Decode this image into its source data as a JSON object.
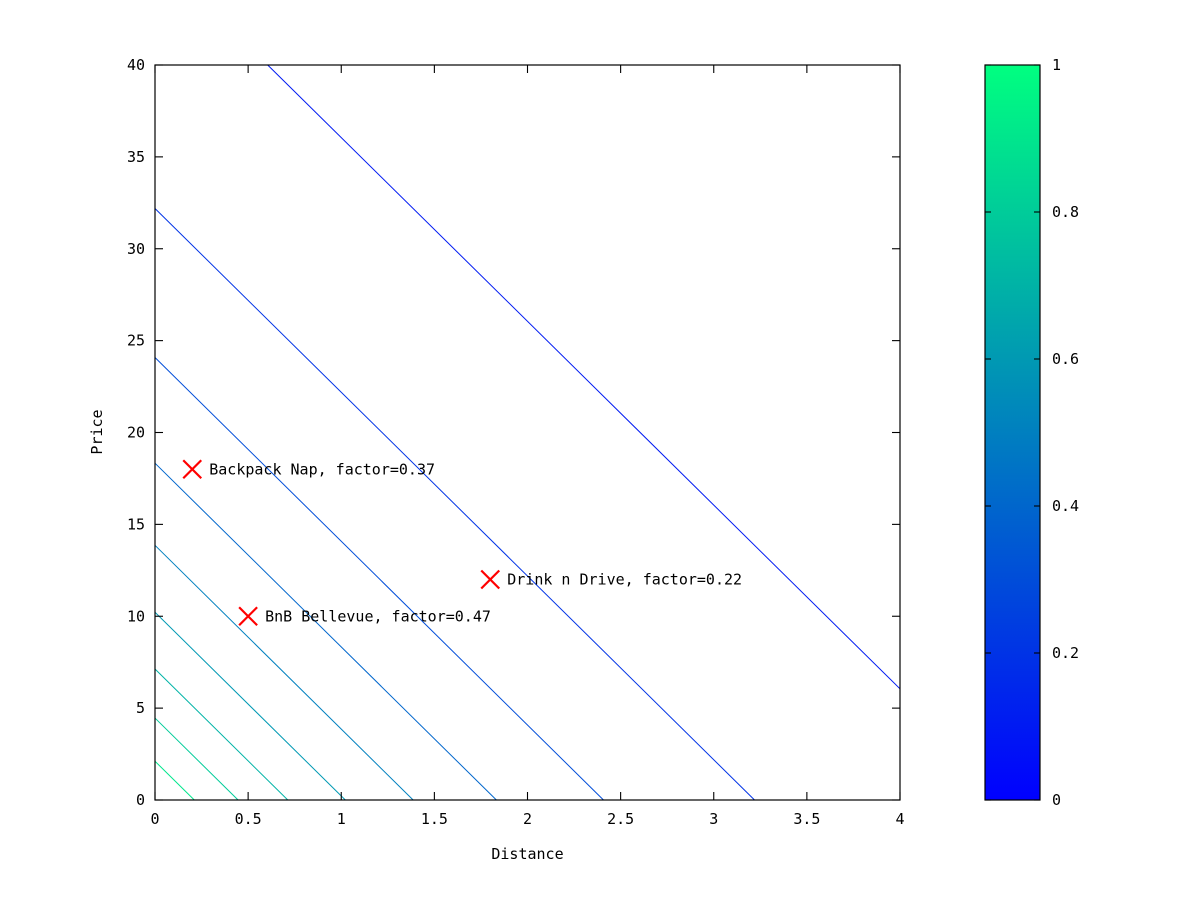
{
  "figure": {
    "background": "#ffffff",
    "axes_color": "#000000",
    "text_color": "#000000"
  },
  "chart_data": {
    "type": "contour",
    "title": "",
    "xlabel": "Distance",
    "ylabel": "Price",
    "xlim": [
      0,
      4
    ],
    "ylim": [
      0,
      40
    ],
    "grid": false,
    "xticks": {
      "values": [
        0,
        0.5,
        1,
        1.5,
        2,
        2.5,
        3,
        3.5,
        4
      ],
      "labels": [
        "0",
        "0.5",
        "1",
        "1.5",
        "2",
        "2.5",
        "3",
        "3.5",
        "4"
      ]
    },
    "yticks": {
      "values": [
        0,
        5,
        10,
        15,
        20,
        25,
        30,
        35,
        40
      ],
      "labels": [
        "0",
        "5",
        "10",
        "15",
        "20",
        "25",
        "30",
        "35",
        "40"
      ]
    },
    "contour_lines": [
      {
        "level": 0.1,
        "color": "#001AF2",
        "from": [
          0.605,
          40
        ],
        "to": [
          4,
          6.05
        ]
      },
      {
        "level": 0.2,
        "color": "#0033E6",
        "from": [
          0,
          32.19
        ],
        "to": [
          3.219,
          0
        ]
      },
      {
        "level": 0.3,
        "color": "#004DD9",
        "from": [
          0,
          24.08
        ],
        "to": [
          2.408,
          0
        ]
      },
      {
        "level": 0.4,
        "color": "#0066CC",
        "from": [
          0,
          18.33
        ],
        "to": [
          1.833,
          0
        ]
      },
      {
        "level": 0.5,
        "color": "#0080BF",
        "from": [
          0,
          13.86
        ],
        "to": [
          1.386,
          0
        ]
      },
      {
        "level": 0.6,
        "color": "#0099B3",
        "from": [
          0,
          10.22
        ],
        "to": [
          1.022,
          0
        ]
      },
      {
        "level": 0.7,
        "color": "#00B3A6",
        "from": [
          0,
          7.13
        ],
        "to": [
          0.713,
          0
        ]
      },
      {
        "level": 0.8,
        "color": "#00CC99",
        "from": [
          0,
          4.46
        ],
        "to": [
          0.446,
          0
        ]
      },
      {
        "level": 0.9,
        "color": "#00E68C",
        "from": [
          0,
          2.11
        ],
        "to": [
          0.211,
          0
        ]
      }
    ],
    "marker": {
      "shape": "x",
      "color": "#ff0000"
    },
    "points": [
      {
        "label": "Backpack Nap, factor=0.37",
        "x": 0.2,
        "y": 18,
        "factor": 0.37
      },
      {
        "label": "Drink n Drive, factor=0.22",
        "x": 1.8,
        "y": 12,
        "factor": 0.22
      },
      {
        "label": "BnB Bellevue, factor=0.47",
        "x": 0.5,
        "y": 10,
        "factor": 0.47
      }
    ],
    "colorbar": {
      "min": 0,
      "max": 1,
      "ticks": [
        0,
        0.2,
        0.4,
        0.6,
        0.8,
        1
      ],
      "tick_labels": [
        "0",
        "0.2",
        "0.4",
        "0.6",
        "0.8",
        "1"
      ],
      "top_color": "#00FF80",
      "bottom_color": "#0000FF"
    }
  }
}
